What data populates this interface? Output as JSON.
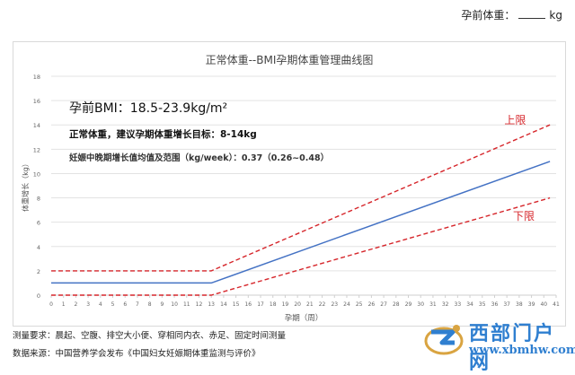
{
  "header": {
    "prepregnancy_weight_label": "孕前体重：",
    "unit": "kg"
  },
  "chart_data": {
    "type": "line",
    "title": "正常体重--BMI孕期体重管理曲线图",
    "xlabel": "孕期（周）",
    "ylabel": "体重增长（kg）",
    "xlim": [
      0,
      41
    ],
    "ylim": [
      0,
      18
    ],
    "x_ticks": [
      0,
      1,
      2,
      3,
      4,
      5,
      6,
      7,
      8,
      9,
      10,
      11,
      12,
      13,
      14,
      15,
      16,
      17,
      18,
      19,
      20,
      21,
      22,
      23,
      24,
      25,
      26,
      27,
      28,
      29,
      30,
      31,
      32,
      33,
      34,
      35,
      36,
      37,
      38,
      39,
      40,
      41
    ],
    "y_ticks": [
      0,
      2,
      4,
      6,
      8,
      10,
      12,
      14,
      16,
      18
    ],
    "grid": true,
    "annotations": {
      "bmi": "孕前BMI：18.5-23.9kg/m²",
      "target": "正常体重，建议孕期体重增长目标：8-14kg",
      "weekly_gain": "妊娠中晚期增长值均值及范围（kg/week）：0.37（0.26~0.48）"
    },
    "series": [
      {
        "name": "上限",
        "style": "dashed",
        "color": "#d6262b",
        "points": [
          [
            0,
            2
          ],
          [
            13,
            2
          ],
          [
            40.5,
            14
          ]
        ]
      },
      {
        "name": "",
        "style": "solid",
        "color": "#4472c4",
        "points": [
          [
            0,
            1
          ],
          [
            13,
            1
          ],
          [
            40.5,
            11
          ]
        ]
      },
      {
        "name": "下限",
        "style": "dashed",
        "color": "#d6262b",
        "points": [
          [
            0,
            0
          ],
          [
            13,
            0
          ],
          [
            40.5,
            8
          ]
        ]
      }
    ],
    "series_labels": {
      "upper": "上限",
      "lower": "下限"
    }
  },
  "footer": {
    "measure_req": "测量要求：晨起、空腹、排空大小便、穿相同内衣、赤足、固定时间测量",
    "source": "数据来源：中国营养学会发布《中国妇女妊娠期体重监测与评价》"
  },
  "watermark": {
    "title": "西部门户网",
    "url": "www.xbmhw.com"
  }
}
